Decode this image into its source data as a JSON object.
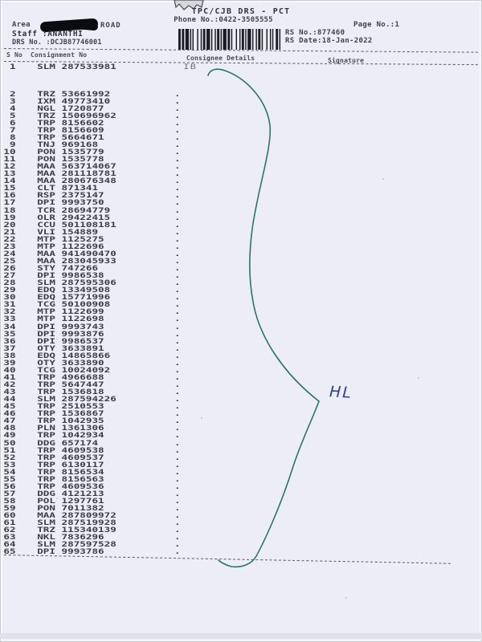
{
  "header": {
    "title": "TPC/CJB  DRS - PCT",
    "phone": "Phone No.:0422-3505555",
    "area_label": "Area",
    "area_value": "ROAD",
    "staff": "Staff :ANANTHI",
    "drs_no": "DRS No. :DCJB87746001",
    "page_no": "Page No.:1",
    "rs_no": "RS No.:877460",
    "rs_date": "RS Date:18-Jan-2022",
    "barcode_icon": "barcode"
  },
  "table": {
    "headers": {
      "s_no": "S No",
      "consignment": "Consignment No",
      "consignee": "Consignee Details",
      "signature": "Signature"
    },
    "first_row": {
      "s_no": "1",
      "consignment_no": "SLM 287533981",
      "consignee": "IB"
    },
    "consignee_mark": ".",
    "rows": [
      [
        "2",
        "TRZ 53661992"
      ],
      [
        "3",
        "IXM 49773410"
      ],
      [
        "4",
        "NGL 1720877"
      ],
      [
        "5",
        "TRZ 150696962"
      ],
      [
        "6",
        "TRP 8156602"
      ],
      [
        "7",
        "TRP 8156609"
      ],
      [
        "8",
        "TRP 5664671"
      ],
      [
        "9",
        "TNJ 969168"
      ],
      [
        "10",
        "PON 1535779"
      ],
      [
        "11",
        "PON 1535778"
      ],
      [
        "12",
        "MAA 563714067"
      ],
      [
        "13",
        "MAA 281118781"
      ],
      [
        "14",
        "MAA 280676348"
      ],
      [
        "15",
        "CLT 871341"
      ],
      [
        "16",
        "RSP 2375147"
      ],
      [
        "17",
        "DPI 9993750"
      ],
      [
        "18",
        "TCR 28694779"
      ],
      [
        "19",
        "OLR 29422415"
      ],
      [
        "20",
        "CCU 501108181"
      ],
      [
        "21",
        "VLI 154889"
      ],
      [
        "22",
        "MTP 1125275"
      ],
      [
        "23",
        "MTP 1122696"
      ],
      [
        "24",
        "MAA 941490470"
      ],
      [
        "25",
        "MAA 283045933"
      ],
      [
        "26",
        "STY 747266"
      ],
      [
        "27",
        "DPI 9986538"
      ],
      [
        "28",
        "SLM 287595306"
      ],
      [
        "29",
        "EDQ 13349508"
      ],
      [
        "30",
        "EDQ 15771996"
      ],
      [
        "31",
        "TCG 50100908"
      ],
      [
        "32",
        "MTP 1122699"
      ],
      [
        "33",
        "MTP 1122698"
      ],
      [
        "34",
        "DPI 9993743"
      ],
      [
        "35",
        "DPI 9993876"
      ],
      [
        "36",
        "DPI 9986537"
      ],
      [
        "37",
        "OTY 3633891"
      ],
      [
        "38",
        "EDQ 14865866"
      ],
      [
        "39",
        "OTY 3633890"
      ],
      [
        "40",
        "TCG 10024092"
      ],
      [
        "41",
        "TRP 4966688"
      ],
      [
        "42",
        "TRP 5647447"
      ],
      [
        "43",
        "TRP 1536818"
      ],
      [
        "44",
        "SLM 287594226"
      ],
      [
        "45",
        "TRP 2510553"
      ],
      [
        "46",
        "TRP 1536867"
      ],
      [
        "47",
        "TRP 1042935"
      ],
      [
        "48",
        "PLN 1361306"
      ],
      [
        "49",
        "TRP 1042934"
      ],
      [
        "50",
        "DDG 657174"
      ],
      [
        "51",
        "TRP 4609538"
      ],
      [
        "52",
        "TRP 4609537"
      ],
      [
        "53",
        "TRP 6130117"
      ],
      [
        "54",
        "TRP 8156534"
      ],
      [
        "55",
        "TRP 8156563"
      ],
      [
        "56",
        "TRP 4609536"
      ],
      [
        "57",
        "DDG 4121213"
      ],
      [
        "58",
        "POL 1297761"
      ],
      [
        "59",
        "PON 7011382"
      ],
      [
        "60",
        "MAA 287809972"
      ],
      [
        "61",
        "SLM 287519928"
      ],
      [
        "62",
        "TRZ 115340139"
      ],
      [
        "63",
        "NKL 7836296"
      ],
      [
        "64",
        "SLM 287597528"
      ],
      [
        "65",
        "DPI 9993786"
      ]
    ]
  },
  "annotation": {
    "handwritten_text": "HL",
    "brace_ink_color": "#28756b",
    "note_ink_color": "#32418e"
  }
}
